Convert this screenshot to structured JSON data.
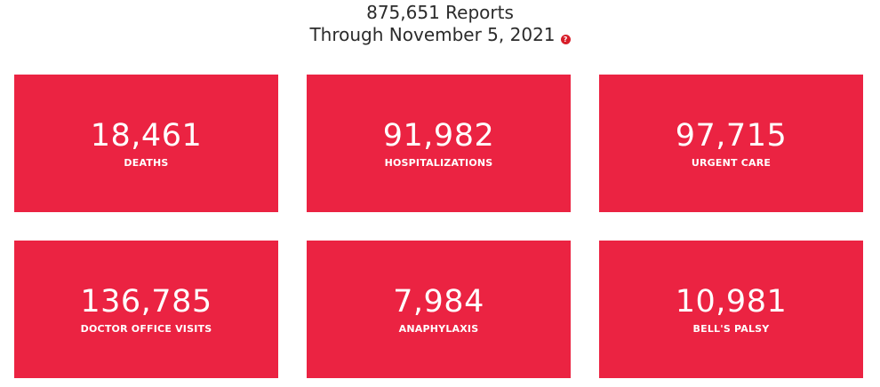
{
  "header": {
    "reports": "875,651 Reports",
    "through": "Through November 5, 2021",
    "help_icon_glyph": "?",
    "help_icon_name": "question-circle-icon",
    "help_icon_color": "#d81e2a"
  },
  "colors": {
    "card_background": "#eb2342",
    "card_text": "#ffffff",
    "header_text": "#2b2b2b"
  },
  "stats": [
    {
      "value": "18,461",
      "label": "DEATHS"
    },
    {
      "value": "91,982",
      "label": "HOSPITALIZATIONS"
    },
    {
      "value": "97,715",
      "label": "URGENT CARE"
    },
    {
      "value": "136,785",
      "label": "DOCTOR OFFICE VISITS"
    },
    {
      "value": "7,984",
      "label": "ANAPHYLAXIS"
    },
    {
      "value": "10,981",
      "label": "BELL'S PALSY"
    }
  ]
}
